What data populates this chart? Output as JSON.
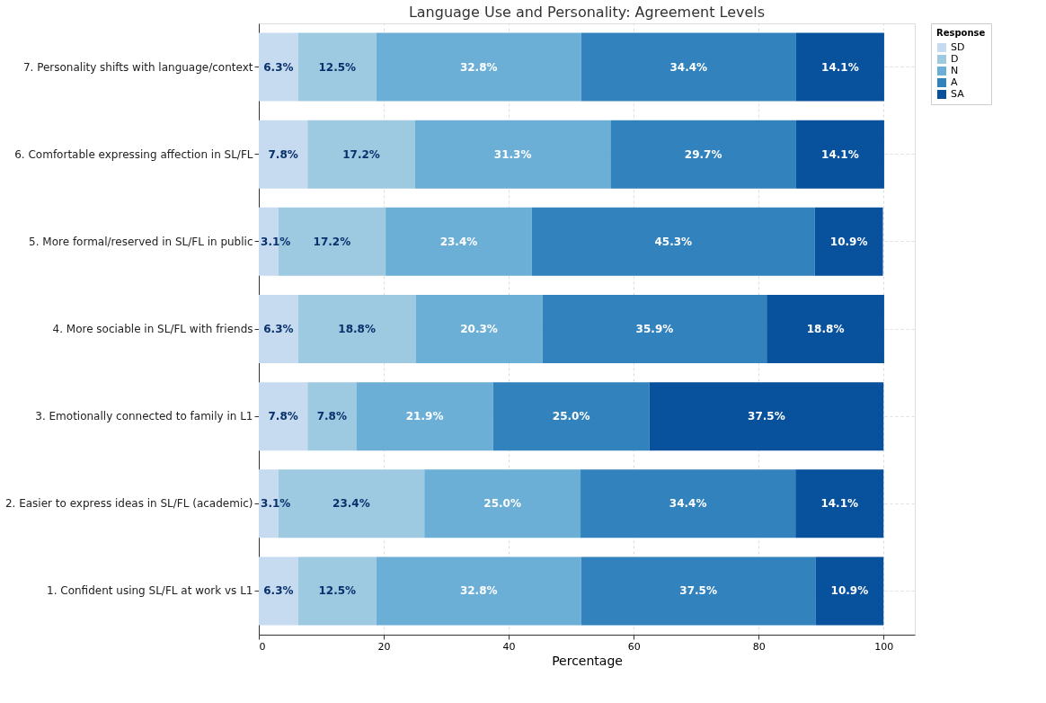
{
  "chart_data": {
    "type": "bar",
    "orientation": "horizontal",
    "stacked": true,
    "title": "Language Use and Personality: Agreement Levels",
    "xlabel": "Percentage",
    "legend_title": "Response",
    "legend": "top right",
    "grid": true,
    "categories": [
      "7. Personality shifts with language/context",
      "6. Comfortable expressing affection in SL/FL",
      "5. More formal/reserved in SL/FL in public",
      "4. More sociable in SL/FL with friends",
      "3. Emotionally connected to family in L1",
      "2. Easier to express ideas in SL/FL (academic)",
      "1. Confident using SL/FL at work vs L1"
    ],
    "xlim": [
      0,
      105
    ],
    "xticks": [
      0,
      20,
      40,
      60,
      80,
      100
    ],
    "series": [
      {
        "name": "SD",
        "color": "#c6dbef",
        "values": [
          6.3,
          7.8,
          3.1,
          6.3,
          7.8,
          3.1,
          6.3
        ],
        "value_labels": [
          "6.3%",
          "7.8%",
          "3.1%",
          "6.3%",
          "7.8%",
          "3.1%",
          "6.3%"
        ]
      },
      {
        "name": "D",
        "color": "#9ecae1",
        "values": [
          12.5,
          17.2,
          17.2,
          18.8,
          7.8,
          23.4,
          12.5
        ],
        "value_labels": [
          "12.5%",
          "17.2%",
          "17.2%",
          "18.8%",
          "7.8%",
          "23.4%",
          "12.5%"
        ]
      },
      {
        "name": "N",
        "color": "#6baed6",
        "values": [
          32.8,
          31.3,
          23.4,
          20.3,
          21.9,
          25.0,
          32.8
        ],
        "value_labels": [
          "32.8%",
          "31.3%",
          "23.4%",
          "20.3%",
          "21.9%",
          "25.0%",
          "32.8%"
        ]
      },
      {
        "name": "A",
        "color": "#3182bd",
        "values": [
          34.4,
          29.7,
          45.3,
          35.9,
          25.0,
          34.4,
          37.5
        ],
        "value_labels": [
          "34.4%",
          "29.7%",
          "45.3%",
          "35.9%",
          "25.0%",
          "34.4%",
          "37.5%"
        ]
      },
      {
        "name": "SA",
        "color": "#08519c",
        "values": [
          14.1,
          14.1,
          10.9,
          18.8,
          37.5,
          14.1,
          10.9
        ],
        "value_labels": [
          "14.1%",
          "14.1%",
          "10.9%",
          "18.8%",
          "37.5%",
          "14.1%",
          "10.9%"
        ]
      }
    ]
  }
}
